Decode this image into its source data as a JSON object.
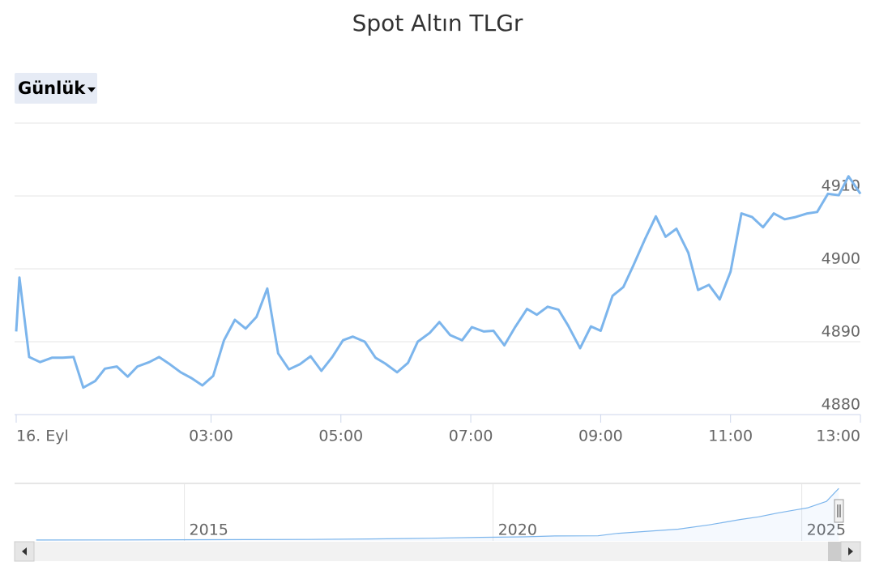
{
  "controls": {
    "period": "Günlük"
  },
  "chart_data": [
    {
      "type": "line",
      "title": "Spot Altın TLGr",
      "color": "#7cb5ec",
      "x": [
        0,
        3,
        12,
        22,
        33,
        43,
        53,
        62,
        73,
        82,
        93,
        103,
        112,
        123,
        132,
        142,
        152,
        162,
        172,
        182,
        192,
        202,
        212,
        222,
        232,
        242,
        252,
        262,
        272,
        282,
        292,
        302,
        311,
        322,
        332,
        341,
        352,
        362,
        371,
        382,
        391,
        401,
        412,
        421,
        432,
        441,
        451,
        461,
        472,
        481,
        491,
        501,
        510,
        521,
        531,
        540,
        551,
        561,
        570,
        581,
        591,
        600,
        610,
        621,
        630,
        640,
        650,
        660,
        670,
        680,
        690,
        700,
        710,
        720,
        731,
        740,
        750,
        760,
        769,
        780
      ],
      "values": [
        4891.4,
        4898.8,
        4887.9,
        4887.2,
        4887.8,
        4887.8,
        4887.9,
        4883.7,
        4884.6,
        4886.3,
        4886.6,
        4885.2,
        4886.6,
        4887.2,
        4887.9,
        4886.9,
        4885.8,
        4885.0,
        4884.0,
        4885.3,
        4890.2,
        4893.0,
        4891.8,
        4893.4,
        4897.3,
        4888.4,
        4886.2,
        4886.9,
        4888.0,
        4886.0,
        4887.9,
        4890.2,
        4890.7,
        4890.0,
        4887.8,
        4887.0,
        4885.8,
        4887.1,
        4890.0,
        4891.2,
        4892.7,
        4890.9,
        4890.2,
        4892.0,
        4891.4,
        4891.5,
        4889.5,
        4892.0,
        4894.5,
        4893.7,
        4894.8,
        4894.4,
        4892.2,
        4889.1,
        4892.1,
        4891.5,
        4896.3,
        4897.5,
        4900.4,
        4904.1,
        4907.2,
        4904.4,
        4905.5,
        4902.2,
        4897.1,
        4897.8,
        4895.8,
        4899.6,
        4907.6,
        4907.1,
        4905.7,
        4907.6,
        4906.8,
        4907.1,
        4907.6,
        4907.8,
        4910.3,
        4910.1,
        4912.7,
        4910.3
      ],
      "xlim": [
        0,
        780
      ],
      "xticks": [
        {
          "value": 0,
          "label": "16. Eyl"
        },
        {
          "value": 180,
          "label": "03:00"
        },
        {
          "value": 300,
          "label": "05:00"
        },
        {
          "value": 420,
          "label": "07:00"
        },
        {
          "value": 540,
          "label": "09:00"
        },
        {
          "value": 660,
          "label": "11:00"
        },
        {
          "value": 780,
          "label": "13:00"
        }
      ],
      "ylim": [
        4880,
        4920
      ],
      "yticks": [
        4880,
        4890,
        4900,
        4910
      ],
      "grid": true
    },
    {
      "type": "line",
      "color": "#7cb5ec",
      "x": [
        2012.6,
        2014,
        2016,
        2017,
        2018,
        2019,
        2019.8,
        2020.5,
        2021,
        2021.7,
        2022,
        2022.5,
        2023,
        2023.5,
        2023.7,
        2024,
        2024.3,
        2024.6,
        2024.9,
        2025.1,
        2025.4,
        2025.6
      ],
      "values": [
        80,
        90,
        120,
        140,
        180,
        250,
        330,
        380,
        460,
        480,
        700,
        900,
        1100,
        1500,
        1700,
        2000,
        2250,
        2600,
        2900,
        3100,
        3700,
        4910
      ],
      "xlim": [
        2012.25,
        2025.95
      ],
      "xticks": [
        2015,
        2020,
        2025
      ],
      "ylim": [
        0,
        5000
      ],
      "grid": true
    }
  ]
}
